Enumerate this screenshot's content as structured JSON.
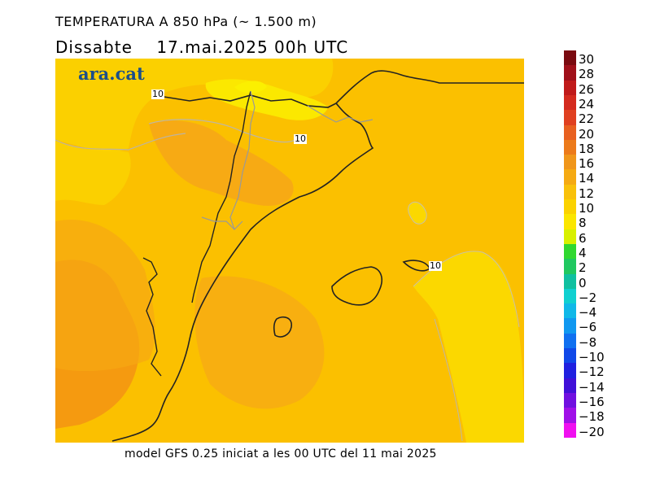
{
  "header": {
    "title": "TEMPERATURA A 850 hPa (~ 1.500 m)",
    "subtitle": "Dissabte    17.mai.2025 00h UTC"
  },
  "logo": {
    "text": "ara.cat"
  },
  "footer": {
    "text": "model GFS 0.25 iniciat a les 00 UTC del 11 mai 2025"
  },
  "map": {
    "contour_labels": [
      "10",
      "10",
      "10"
    ]
  },
  "colorbar": {
    "labels": [
      "30",
      "28",
      "26",
      "24",
      "22",
      "20",
      "18",
      "16",
      "14",
      "12",
      "10",
      "8",
      "6",
      "4",
      "2",
      "0",
      "−2",
      "−4",
      "−6",
      "−8",
      "−10",
      "−12",
      "−14",
      "−16",
      "−18",
      "−20"
    ],
    "colors": [
      "#7a0a10",
      "#a0101a",
      "#c01a1a",
      "#d42a1e",
      "#e04020",
      "#e86020",
      "#ec7a1a",
      "#f0961a",
      "#f5aa12",
      "#f9c10a",
      "#fbd200",
      "#fbe600",
      "#d8f000",
      "#30d830",
      "#20c860",
      "#10c0a0",
      "#10d0d0",
      "#10b8e8",
      "#1098f0",
      "#1070f0",
      "#1048e8",
      "#2020e0",
      "#4010d8",
      "#7010e0",
      "#a010e8",
      "#f010f0"
    ]
  }
}
